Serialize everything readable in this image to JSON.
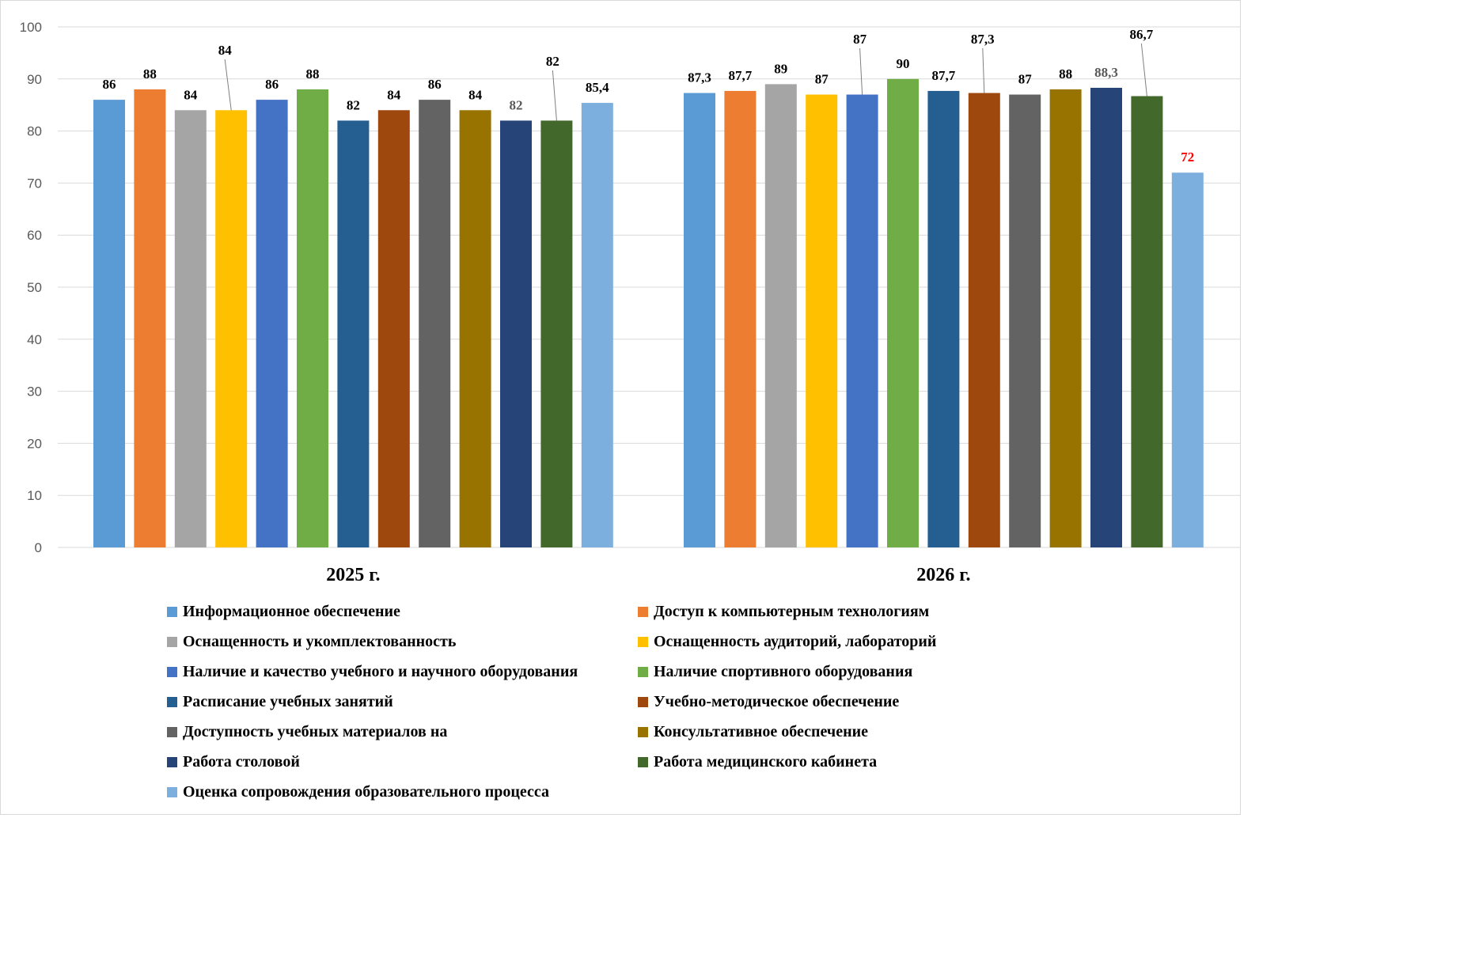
{
  "chart_data": {
    "type": "bar",
    "categories": [
      "2025 г.",
      "2026 г."
    ],
    "ylim": [
      0,
      100
    ],
    "yticks": [
      0,
      10,
      20,
      30,
      40,
      50,
      60,
      70,
      80,
      90,
      100
    ],
    "grid": true,
    "legend_position": "bottom",
    "series": [
      {
        "name": "Информационное обеспечение",
        "color": "#5B9BD5",
        "values": [
          86,
          87.3
        ],
        "labels": [
          "86",
          "87,3"
        ]
      },
      {
        "name": "Доступ к компьютерным технологиям",
        "color": "#ED7D31",
        "values": [
          88,
          87.7
        ],
        "labels": [
          "88",
          "87,7"
        ]
      },
      {
        "name": "Оснащенность и укомплектованность",
        "color": "#A5A5A5",
        "values": [
          84,
          89
        ],
        "labels": [
          "84",
          "89"
        ]
      },
      {
        "name": "Оснащенность аудиторий, лабораторий",
        "color": "#FFC000",
        "values": [
          84,
          87
        ],
        "labels": [
          "84",
          "87"
        ]
      },
      {
        "name": "Наличие и качество учебного и научного оборудования",
        "color": "#4472C4",
        "values": [
          86,
          87
        ],
        "labels": [
          "86",
          "87"
        ]
      },
      {
        "name": "Наличие спортивного оборудования",
        "color": "#70AD47",
        "values": [
          88,
          90
        ],
        "labels": [
          "88",
          "90"
        ]
      },
      {
        "name": "Расписание учебных занятий",
        "color": "#255E91",
        "values": [
          82,
          87.7
        ],
        "labels": [
          "82",
          "87,7"
        ]
      },
      {
        "name": "Учебно-методическое обеспечение",
        "color": "#9E480E",
        "values": [
          84,
          87.3
        ],
        "labels": [
          "84",
          "87,3"
        ]
      },
      {
        "name": "Доступность учебных материалов на",
        "color": "#636363",
        "values": [
          86,
          87
        ],
        "labels": [
          "86",
          "87"
        ]
      },
      {
        "name": "Консультативное обеспечение",
        "color": "#997300",
        "values": [
          84,
          88
        ],
        "labels": [
          "84",
          "88"
        ]
      },
      {
        "name": "Работа столовой",
        "color": "#264478",
        "values": [
          82,
          88.3
        ],
        "labels": [
          "82",
          "88,3"
        ]
      },
      {
        "name": "Работа медицинского кабинета",
        "color": "#43682B",
        "values": [
          82,
          86.7
        ],
        "labels": [
          "82",
          "86,7"
        ]
      },
      {
        "name": "Оценка сопровождения образовательного процесса",
        "color": "#7CAFDD",
        "values": [
          85.4,
          72
        ],
        "labels": [
          "85,4",
          "72"
        ]
      }
    ],
    "label_colors": {
      "default": "#000000",
      "muted": "#595959",
      "highlight": "#FF0000"
    }
  }
}
